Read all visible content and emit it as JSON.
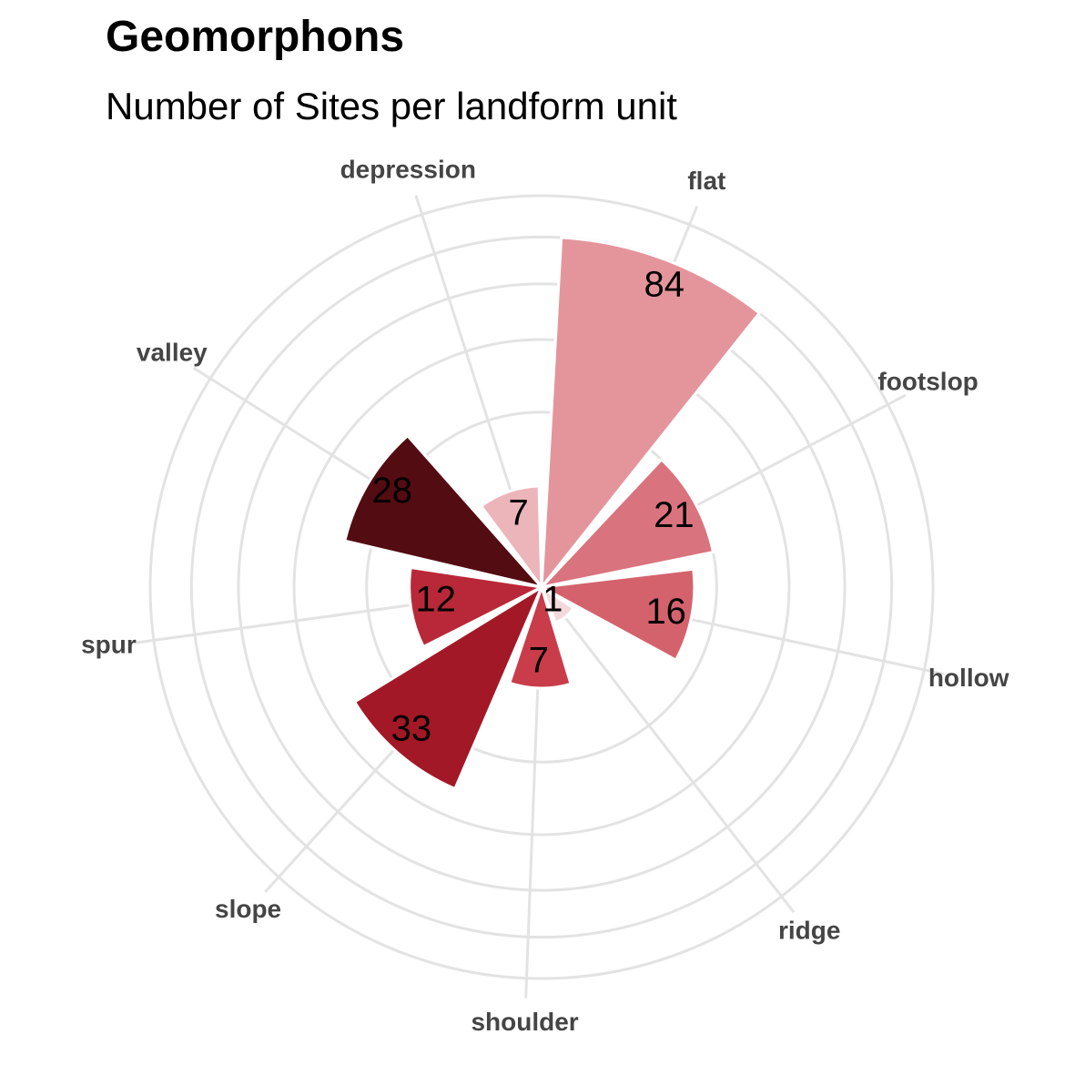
{
  "chart_data": {
    "type": "bar",
    "subtype": "polar",
    "title": "Geomorphons",
    "subtitle": "Number of Sites per landform unit",
    "categories": [
      "flat",
      "footslop",
      "hollow",
      "ridge",
      "shoulder",
      "slope",
      "spur",
      "valley",
      "depression"
    ],
    "values": [
      84,
      21,
      16,
      1,
      7,
      33,
      12,
      28,
      7
    ],
    "colors": [
      "#e4959b",
      "#d9737d",
      "#d4626d",
      "#f4d9db",
      "#c93c4a",
      "#a31826",
      "#b92838",
      "#530c11",
      "#ecb5ba"
    ],
    "ylim": [
      0,
      105
    ],
    "grid": true,
    "legend": "none"
  }
}
